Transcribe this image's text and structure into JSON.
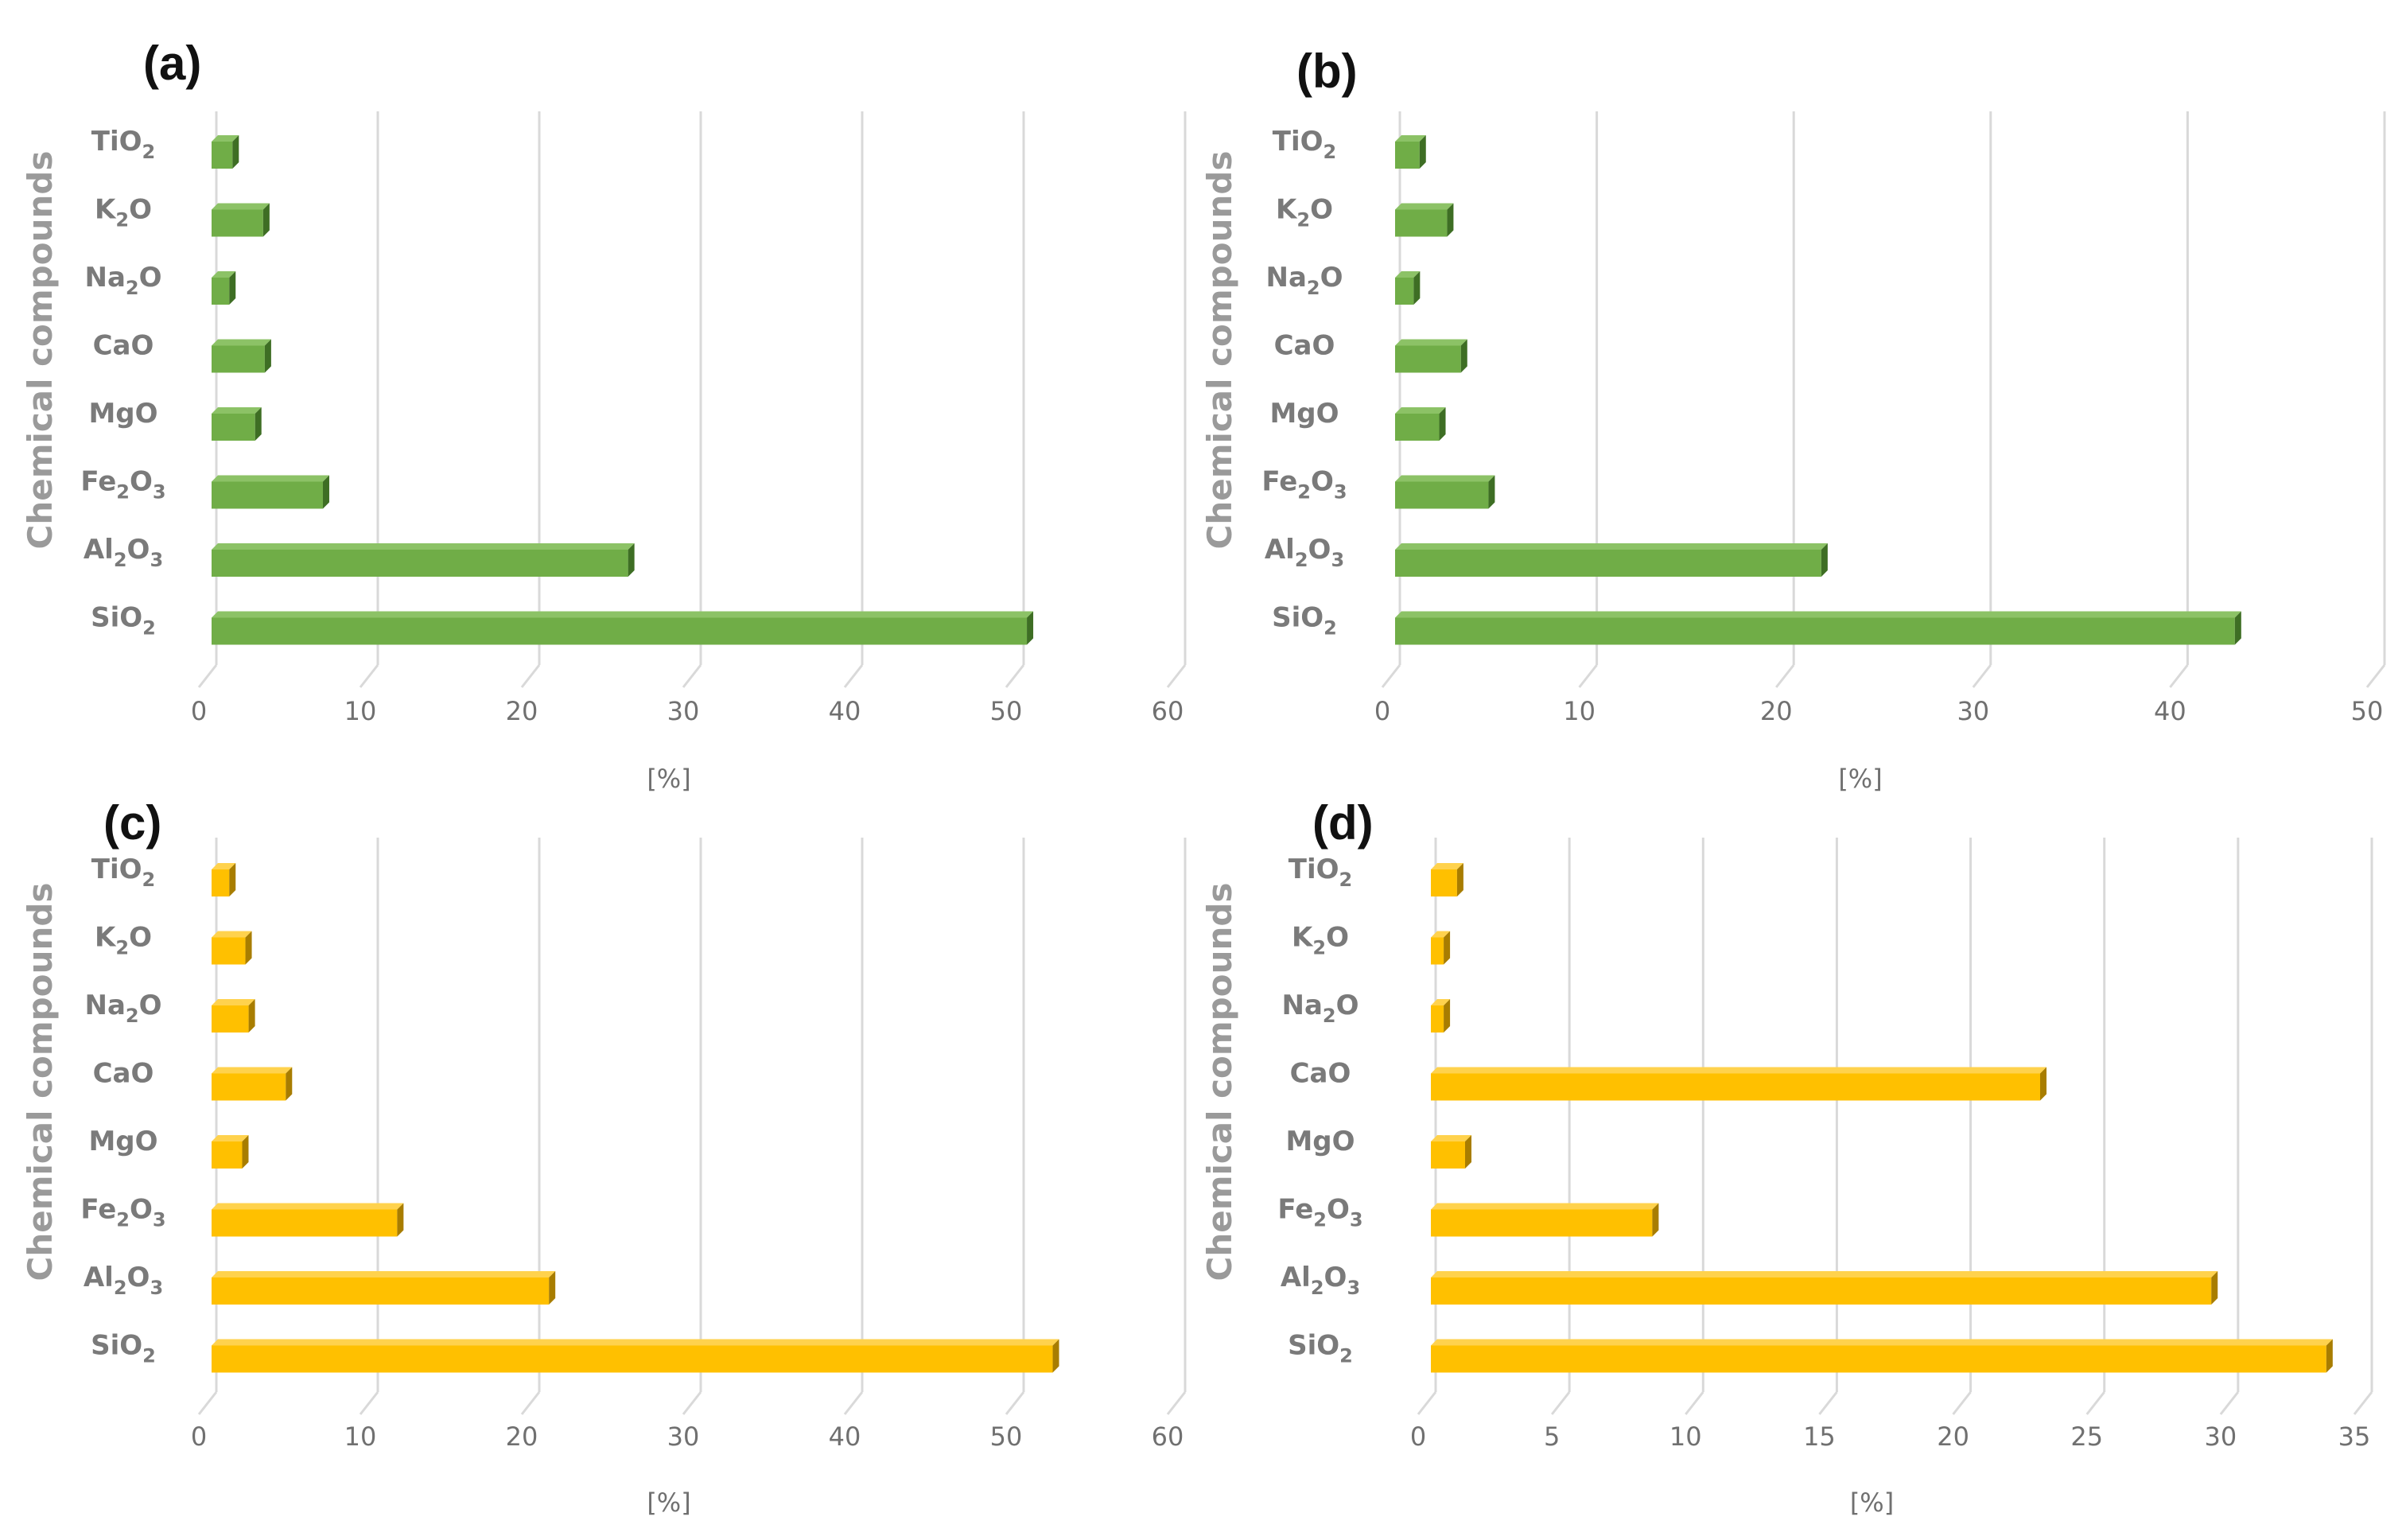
{
  "chart_data": [
    {
      "panel": "(a)",
      "type": "bar",
      "orientation": "horizontal",
      "color_front": "#70ad47",
      "color_top": "#8cc266",
      "color_side": "#3e6e24",
      "ylabel": "Chemical compounds",
      "xlabel": "[%]",
      "xlim": [
        0,
        60
      ],
      "xticks": [
        0,
        10,
        20,
        30,
        40,
        50,
        60
      ],
      "categories": [
        {
          "base": "TiO",
          "sub": "2",
          "suffix": "",
          "value": 1.0
        },
        {
          "base": "K",
          "sub": "2",
          "suffix": "O",
          "value": 2.9
        },
        {
          "base": "Na",
          "sub": "2",
          "suffix": "O",
          "value": 0.8
        },
        {
          "base": "CaO",
          "sub": "",
          "suffix": "",
          "value": 3.0
        },
        {
          "base": "MgO",
          "sub": "",
          "suffix": "",
          "value": 2.4
        },
        {
          "base": "Fe",
          "sub": "2",
          "suffix": "O3",
          "value": 6.6
        },
        {
          "base": "Al",
          "sub": "2",
          "suffix": "O3",
          "value": 25.5
        },
        {
          "base": "SiO",
          "sub": "2",
          "suffix": "",
          "value": 50.2
        }
      ]
    },
    {
      "panel": "(b)",
      "type": "bar",
      "orientation": "horizontal",
      "color_front": "#70ad47",
      "color_top": "#8cc266",
      "color_side": "#3e6e24",
      "ylabel": "Chemical compounds",
      "xlabel": "[%]",
      "xlim": [
        0,
        50
      ],
      "xticks": [
        0,
        10,
        20,
        30,
        40,
        50
      ],
      "categories": [
        {
          "base": "TiO",
          "sub": "2",
          "suffix": "",
          "value": 1.0
        },
        {
          "base": "K",
          "sub": "2",
          "suffix": "O",
          "value": 2.4
        },
        {
          "base": "Na",
          "sub": "2",
          "suffix": "O",
          "value": 0.7
        },
        {
          "base": "CaO",
          "sub": "",
          "suffix": "",
          "value": 3.1
        },
        {
          "base": "MgO",
          "sub": "",
          "suffix": "",
          "value": 2.0
        },
        {
          "base": "Fe",
          "sub": "2",
          "suffix": "O3",
          "value": 4.5
        },
        {
          "base": "Al",
          "sub": "2",
          "suffix": "O3",
          "value": 21.4
        },
        {
          "base": "SiO",
          "sub": "2",
          "suffix": "",
          "value": 42.4
        }
      ]
    },
    {
      "panel": "(c)",
      "type": "bar",
      "orientation": "horizontal",
      "color_front": "#ffc000",
      "color_top": "#ffd24d",
      "color_side": "#a87d00",
      "ylabel": "Chemical compounds",
      "xlabel": "[%]",
      "xlim": [
        0,
        60
      ],
      "xticks": [
        0,
        10,
        20,
        30,
        40,
        50,
        60
      ],
      "categories": [
        {
          "base": "TiO",
          "sub": "2",
          "suffix": "",
          "value": 0.8
        },
        {
          "base": "K",
          "sub": "2",
          "suffix": "O",
          "value": 1.8
        },
        {
          "base": "Na",
          "sub": "2",
          "suffix": "O",
          "value": 2.0
        },
        {
          "base": "CaO",
          "sub": "",
          "suffix": "",
          "value": 4.3
        },
        {
          "base": "MgO",
          "sub": "",
          "suffix": "",
          "value": 1.6
        },
        {
          "base": "Fe",
          "sub": "2",
          "suffix": "O3",
          "value": 11.2
        },
        {
          "base": "Al",
          "sub": "2",
          "suffix": "O3",
          "value": 20.6
        },
        {
          "base": "SiO",
          "sub": "2",
          "suffix": "",
          "value": 51.8
        }
      ]
    },
    {
      "panel": "(d)",
      "type": "bar",
      "orientation": "horizontal",
      "color_front": "#ffc000",
      "color_top": "#ffd24d",
      "color_side": "#a87d00",
      "ylabel": "Chemical compounds",
      "xlabel": "[%]",
      "xlim": [
        0,
        35
      ],
      "xticks": [
        0,
        5,
        10,
        15,
        20,
        25,
        30,
        35
      ],
      "categories": [
        {
          "base": "TiO",
          "sub": "2",
          "suffix": "",
          "value": 0.8
        },
        {
          "base": "K",
          "sub": "2",
          "suffix": "O",
          "value": 0.3
        },
        {
          "base": "Na",
          "sub": "2",
          "suffix": "O",
          "value": 0.3
        },
        {
          "base": "CaO",
          "sub": "",
          "suffix": "",
          "value": 22.6
        },
        {
          "base": "MgO",
          "sub": "",
          "suffix": "",
          "value": 1.1
        },
        {
          "base": "Fe",
          "sub": "2",
          "suffix": "O3",
          "value": 8.1
        },
        {
          "base": "Al",
          "sub": "2",
          "suffix": "O3",
          "value": 29.0
        },
        {
          "base": "SiO",
          "sub": "2",
          "suffix": "",
          "value": 33.3
        }
      ]
    }
  ]
}
